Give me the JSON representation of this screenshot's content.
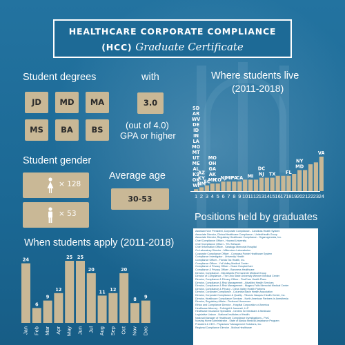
{
  "title": {
    "line1": "HEALTHCARE CORPORATE COMPLIANCE",
    "abbr": "(HCC)",
    "line2": "Graduate Certificate"
  },
  "degrees": {
    "heading": "Student degrees",
    "items": [
      "JD",
      "MD",
      "MA",
      "MS",
      "BA",
      "BS"
    ]
  },
  "gpa": {
    "with_label": "with",
    "value": "3.0",
    "line1": "(out of 4.0)",
    "line2": "GPA or higher"
  },
  "gender": {
    "heading": "Student gender",
    "female_count": "× 128",
    "male_count": "× 53",
    "female_icon": "female-person-icon",
    "male_icon": "male-person-icon"
  },
  "age": {
    "heading": "Average age",
    "value": "30-53"
  },
  "colors": {
    "background": "#1d6a96",
    "tan": "#c9b896",
    "white": "#ffffff"
  },
  "positions": {
    "heading": "Positions held by graduates",
    "items": [
      "Assistant Vice President, Corporate Compliance - Carolinas Health System",
      "Associate Director, Clinical Healthcare Compliance - UnitedHealth Group",
      "Associate Director, Regulatory Healthcare Compliance - Organogenesis, Inc.",
      "Chief Compliance Officer - Howard University",
      "Chief Compliance Officer - THJ Network",
      "Chief Information Officer - Saratoga Memorial Hospital",
      "Co-Laboratory Director - Millennium Laboratories",
      "Corporate Compliance Officer - Compass Pointe Healthcare System",
      "Compliance Investigator - University Health",
      "Compliance Officer - Florida Tax Health, Inc.",
      "Compliance Officer - Yuil Valley Medical Center",
      "Compliance & Privacy Officer - Grace HospiceCare",
      "Compliance & Privacy Officer - Baroness Healthcare",
      "Director, Compliance - Mid-Atlantic Permanente Medical Group",
      "Director of Compliance - The Ohio State University Wexner Medical Center",
      "Director, Compliance & Privacy Officer - FirstCare Health Plans",
      "Director, Compliance & Risk Management - AlisaMed Health Services",
      "Director, Compliance & Risk Management - Niagara Falls Memorial Medical Center",
      "Director, Compliance & Privacy - Citrus Valley Health Partners",
      "Director, Corporate Compliance - Columbia Basin Health Association",
      "Director, Corporate Compliance & Quality - Tiburcio Vasquez Health Center, Inc.",
      "Director, Healthcare Compliance Services - North American Partners in Anesthesia",
      "Director, Regulatory Affairs - Preferred Homecare",
      "Ethics and Compliance Director - Hospital Corporation of America",
      "Healthcare Attorney - Fulbright & Jaworski, LLP",
      "Healthcare Insurance Specialist - Centers for Medicare & Medicaid",
      "Legislative Liaison - National Institutes of Health",
      "National Manager of Healthcare Compliance Investigations - PwC",
      "Nursing Home Administrator - State of Alaska Medical Assistance Program",
      "President & CEO - Physicians' Management Solutions, Inc.",
      "Regional Compliance Director - Molina Healthcare"
    ]
  },
  "chart_data": [
    {
      "type": "bar",
      "title": "Where students live",
      "subtitle": "(2011-2018)",
      "x": [
        "1",
        "2",
        "3",
        "4",
        "5",
        "6",
        "7",
        "8",
        "9",
        "10",
        "11",
        "12",
        "13",
        "14",
        "15",
        "16",
        "17",
        "18",
        "19",
        "20",
        "21",
        "22",
        "23",
        "24"
      ],
      "values": [
        1,
        2,
        3,
        4,
        4,
        5,
        5,
        5,
        5,
        6,
        6,
        6,
        7,
        7,
        7,
        8,
        8,
        8,
        9,
        11,
        11,
        14,
        15,
        18
      ],
      "data_labels": [
        "SD AR WV DE ID IN LA MO MT UT ME AL KS OK WI",
        "AZ KY NM",
        "SC",
        "MO OH GA AK MN",
        "CO",
        "NJ",
        "MI",
        "PA",
        "CA",
        "",
        "MI",
        "",
        "DC NJ",
        "",
        "TX",
        "",
        "",
        "FL",
        "",
        "NY MD",
        "",
        "",
        "",
        "VA"
      ]
    },
    {
      "type": "bar",
      "title": "When students apply (2011-2018)",
      "categories": [
        "Jan",
        "Feb",
        "Mar",
        "Apr",
        "May",
        "Jun",
        "Jul",
        "Aug",
        "Sep",
        "Oct",
        "Nov",
        "Dec"
      ],
      "values": [
        24,
        6,
        9,
        12,
        25,
        25,
        20,
        11,
        12,
        20,
        8,
        9
      ]
    }
  ]
}
